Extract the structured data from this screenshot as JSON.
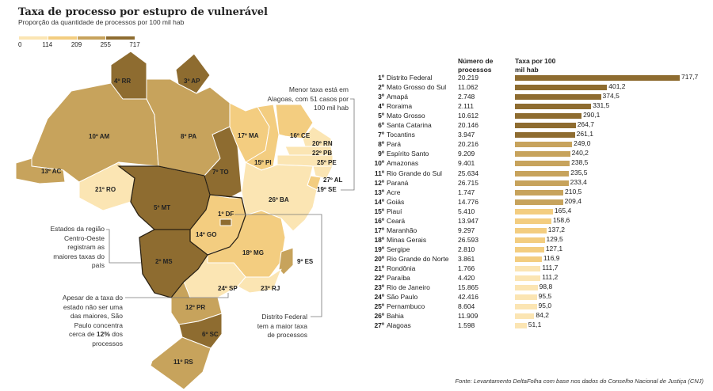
{
  "title": "Taxa de processo por estupro de vulnerável",
  "subtitle": "Proporção da quantidade de processos por 100 mil hab",
  "legend": {
    "ticks": [
      "0",
      "114",
      "209",
      "255",
      "717"
    ],
    "colors": [
      "#fbe5b3",
      "#f3cd80",
      "#c7a35c",
      "#8e6c30"
    ]
  },
  "map_labels": {
    "RR": "4º RR",
    "AP": "3º AP",
    "AM": "10º AM",
    "PA": "8º PA",
    "AC": "13º AC",
    "RO": "21º RO",
    "MT": "5º MT",
    "TO": "7º TO",
    "MA": "17º MA",
    "PI": "15º PI",
    "CE": "16º CE",
    "RN": "20º RN",
    "PB": "22º PB",
    "PE": "25º PE",
    "AL": "27º AL",
    "SE": "19º SE",
    "BA": "26º BA",
    "DF": "1º DF",
    "GO": "14º GO",
    "MG": "18º MG",
    "ES": "9º ES",
    "MS": "2º MS",
    "SP": "24º SP",
    "RJ": "23º RJ",
    "PR": "12º PR",
    "SC": "6º SC",
    "RS": "11º RS"
  },
  "notes": {
    "alagoas": "Menor taxa está em Alagoas, com 51 casos por 100 mil hab",
    "centro_oeste": "Estados da região Centro-Oeste registram as maiores taxas do país",
    "sp_pre": "Apesar de a taxa do estado não ser uma das maiores, São Paulo concentra cerca de ",
    "sp_bold": "12%",
    "sp_post": " dos processos",
    "df": "Distrito Federal tem a maior taxa de processos"
  },
  "chart_data": {
    "type": "bar",
    "title": "Taxa de processo por estupro de vulnerável",
    "columns": [
      "Número de processos",
      "Taxa por 100 mil hab"
    ],
    "rows": [
      {
        "rank": "1º",
        "state": "Distrito Federal",
        "count": "20.219",
        "rate": 717.7,
        "label": "717,7"
      },
      {
        "rank": "2º",
        "state": "Mato Grosso do Sul",
        "count": "11.062",
        "rate": 401.2,
        "label": "401,2"
      },
      {
        "rank": "3º",
        "state": "Amapá",
        "count": "2.748",
        "rate": 374.5,
        "label": "374,5"
      },
      {
        "rank": "4º",
        "state": "Roraima",
        "count": "2.111",
        "rate": 331.5,
        "label": "331,5"
      },
      {
        "rank": "5º",
        "state": "Mato Grosso",
        "count": "10.612",
        "rate": 290.1,
        "label": "290,1"
      },
      {
        "rank": "6º",
        "state": "Santa Catarina",
        "count": "20.146",
        "rate": 264.7,
        "label": "264,7"
      },
      {
        "rank": "7º",
        "state": "Tocantins",
        "count": "3.947",
        "rate": 261.1,
        "label": "261,1"
      },
      {
        "rank": "8º",
        "state": "Pará",
        "count": "20.216",
        "rate": 249.0,
        "label": "249,0"
      },
      {
        "rank": "9º",
        "state": "Espírito Santo",
        "count": "9.209",
        "rate": 240.2,
        "label": "240,2"
      },
      {
        "rank": "10º",
        "state": "Amazonas",
        "count": "9.401",
        "rate": 238.5,
        "label": "238,5"
      },
      {
        "rank": "11º",
        "state": "Rio Grande do Sul",
        "count": "25.634",
        "rate": 235.5,
        "label": "235,5"
      },
      {
        "rank": "12º",
        "state": "Paraná",
        "count": "26.715",
        "rate": 233.4,
        "label": "233,4"
      },
      {
        "rank": "13º",
        "state": "Acre",
        "count": "1.747",
        "rate": 210.5,
        "label": "210,5"
      },
      {
        "rank": "14º",
        "state": "Goiás",
        "count": "14.776",
        "rate": 209.4,
        "label": "209,4"
      },
      {
        "rank": "15º",
        "state": "Piauí",
        "count": "5.410",
        "rate": 165.4,
        "label": "165,4"
      },
      {
        "rank": "16º",
        "state": "Ceará",
        "count": "13.947",
        "rate": 158.6,
        "label": "158,6"
      },
      {
        "rank": "17º",
        "state": "Maranhão",
        "count": "9.297",
        "rate": 137.2,
        "label": "137,2"
      },
      {
        "rank": "18º",
        "state": "Minas Gerais",
        "count": "26.593",
        "rate": 129.5,
        "label": "129,5"
      },
      {
        "rank": "19º",
        "state": "Sergipe",
        "count": "2.810",
        "rate": 127.1,
        "label": "127,1"
      },
      {
        "rank": "20º",
        "state": "Rio Grande do Norte",
        "count": "3.861",
        "rate": 116.9,
        "label": "116,9"
      },
      {
        "rank": "21º",
        "state": "Rondônia",
        "count": "1.766",
        "rate": 111.7,
        "label": "111,7"
      },
      {
        "rank": "22º",
        "state": "Paraíba",
        "count": "4.420",
        "rate": 111.2,
        "label": "111,2"
      },
      {
        "rank": "23º",
        "state": "Rio de Janeiro",
        "count": "15.865",
        "rate": 98.8,
        "label": "98,8"
      },
      {
        "rank": "24º",
        "state": "São Paulo",
        "count": "42.416",
        "rate": 95.5,
        "label": "95,5"
      },
      {
        "rank": "25º",
        "state": "Pernambuco",
        "count": "8.604",
        "rate": 95.0,
        "label": "95,0"
      },
      {
        "rank": "26º",
        "state": "Bahia",
        "count": "11.909",
        "rate": 84.2,
        "label": "84,2"
      },
      {
        "rank": "27º",
        "state": "Alagoas",
        "count": "1.598",
        "rate": 51.1,
        "label": "51,1"
      }
    ],
    "xlim": [
      0,
      717.7
    ]
  },
  "table_headers": {
    "count": "Número de processos",
    "rate": "Taxa por 100 mil hab"
  },
  "source": "Fonte: Levantamento DeltaFolha com base nos dados do Conselho Nacional de Justiça (CNJ)"
}
